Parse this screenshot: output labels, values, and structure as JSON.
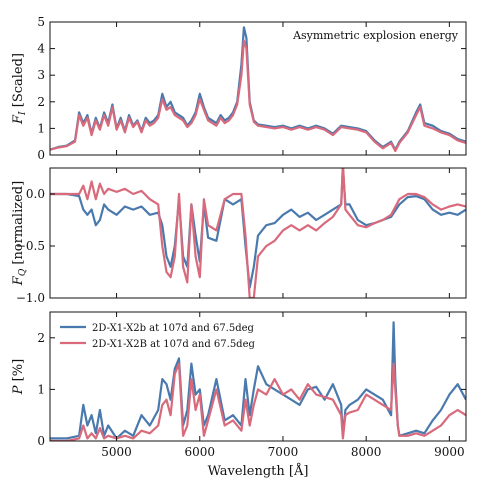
{
  "chart_data": [
    {
      "type": "line",
      "ylabel": "F_I [Scaled]",
      "xlim": [
        4200,
        9200
      ],
      "ylim": [
        0,
        5
      ],
      "yticks": [
        "0",
        "1",
        "2",
        "3",
        "4",
        "5"
      ],
      "annotation": "Asymmetric explosion energy",
      "series": [
        {
          "color": "#4a7aad",
          "x": [
            4200,
            4300,
            4400,
            4500,
            4550,
            4600,
            4650,
            4700,
            4750,
            4800,
            4850,
            4900,
            4950,
            5000,
            5050,
            5100,
            5150,
            5200,
            5250,
            5300,
            5350,
            5400,
            5450,
            5500,
            5550,
            5600,
            5650,
            5700,
            5750,
            5800,
            5850,
            5900,
            5950,
            6000,
            6050,
            6100,
            6150,
            6200,
            6250,
            6300,
            6350,
            6400,
            6450,
            6500,
            6530,
            6560,
            6600,
            6650,
            6700,
            6800,
            6900,
            7000,
            7100,
            7200,
            7300,
            7400,
            7500,
            7600,
            7700,
            7800,
            7900,
            8000,
            8100,
            8200,
            8300,
            8350,
            8400,
            8500,
            8600,
            8650,
            8700,
            8800,
            8900,
            9000,
            9100,
            9200
          ],
          "y": [
            0.2,
            0.3,
            0.35,
            0.55,
            1.6,
            1.2,
            1.5,
            0.8,
            1.4,
            1.0,
            1.6,
            1.2,
            1.9,
            1.0,
            1.4,
            0.9,
            1.5,
            1.1,
            1.3,
            0.9,
            1.4,
            1.2,
            1.3,
            1.5,
            2.3,
            1.8,
            2.0,
            1.6,
            1.5,
            1.4,
            1.1,
            1.3,
            1.6,
            2.3,
            1.8,
            1.4,
            1.3,
            1.2,
            1.5,
            1.3,
            1.4,
            1.6,
            2.0,
            3.4,
            4.8,
            4.4,
            2.0,
            1.3,
            1.15,
            1.1,
            1.05,
            1.1,
            1.0,
            1.1,
            1.0,
            1.1,
            1.0,
            0.8,
            1.1,
            1.05,
            1.0,
            0.9,
            0.55,
            0.3,
            0.5,
            0.2,
            0.5,
            0.9,
            1.6,
            1.9,
            1.2,
            1.1,
            0.9,
            0.8,
            0.6,
            0.5
          ]
        },
        {
          "color": "#d86a7c",
          "x": [
            4200,
            4300,
            4400,
            4500,
            4550,
            4600,
            4650,
            4700,
            4750,
            4800,
            4850,
            4900,
            4950,
            5000,
            5050,
            5100,
            5150,
            5200,
            5250,
            5300,
            5350,
            5400,
            5450,
            5500,
            5550,
            5600,
            5650,
            5700,
            5750,
            5800,
            5850,
            5900,
            5950,
            6000,
            6050,
            6100,
            6150,
            6200,
            6250,
            6300,
            6350,
            6400,
            6450,
            6500,
            6530,
            6560,
            6600,
            6650,
            6700,
            6800,
            6900,
            7000,
            7100,
            7200,
            7300,
            7400,
            7500,
            7600,
            7700,
            7800,
            7900,
            8000,
            8100,
            8200,
            8300,
            8350,
            8400,
            8500,
            8600,
            8650,
            8700,
            8800,
            8900,
            9000,
            9100,
            9200
          ],
          "y": [
            0.2,
            0.28,
            0.33,
            0.5,
            1.5,
            1.1,
            1.4,
            0.75,
            1.3,
            0.95,
            1.5,
            1.1,
            1.8,
            0.95,
            1.3,
            0.85,
            1.4,
            1.05,
            1.25,
            0.85,
            1.3,
            1.1,
            1.2,
            1.4,
            2.1,
            1.7,
            1.8,
            1.5,
            1.4,
            1.3,
            1.05,
            1.2,
            1.5,
            2.1,
            1.7,
            1.3,
            1.2,
            1.1,
            1.4,
            1.2,
            1.3,
            1.5,
            1.9,
            3.0,
            4.3,
            4.0,
            1.9,
            1.25,
            1.1,
            1.05,
            1.0,
            1.05,
            0.95,
            1.05,
            0.95,
            1.05,
            0.95,
            0.75,
            1.05,
            1.0,
            0.95,
            0.85,
            0.5,
            0.25,
            0.45,
            0.15,
            0.45,
            0.85,
            1.5,
            1.8,
            1.1,
            1.0,
            0.85,
            0.75,
            0.55,
            0.45
          ]
        }
      ]
    },
    {
      "type": "line",
      "ylabel": "F_Q [normalized]",
      "xlim": [
        4200,
        9200
      ],
      "ylim": [
        -1.0,
        0.25
      ],
      "yticks": [
        "0.0",
        "−0.5",
        "−1.0"
      ],
      "series": [
        {
          "color": "#4a7aad",
          "x": [
            4200,
            4400,
            4550,
            4600,
            4650,
            4700,
            4750,
            4800,
            4850,
            4900,
            5000,
            5100,
            5200,
            5300,
            5400,
            5500,
            5550,
            5600,
            5650,
            5700,
            5750,
            5800,
            5850,
            5900,
            5950,
            6000,
            6050,
            6100,
            6200,
            6300,
            6400,
            6500,
            6550,
            6600,
            6650,
            6700,
            6800,
            6900,
            7000,
            7100,
            7200,
            7300,
            7400,
            7500,
            7600,
            7700,
            7720,
            7750,
            7800,
            7900,
            8000,
            8100,
            8200,
            8300,
            8400,
            8500,
            8600,
            8700,
            8800,
            8900,
            9000,
            9100,
            9200
          ],
          "y": [
            0.0,
            0.0,
            -0.02,
            -0.15,
            -0.2,
            -0.15,
            -0.3,
            -0.25,
            -0.1,
            -0.15,
            -0.2,
            -0.12,
            -0.15,
            -0.12,
            -0.2,
            -0.18,
            -0.3,
            -0.6,
            -0.7,
            -0.5,
            -0.05,
            -0.6,
            -0.7,
            -0.1,
            -0.4,
            -0.65,
            -0.1,
            -0.42,
            -0.45,
            -0.05,
            -0.1,
            -0.05,
            -0.5,
            -0.9,
            -0.7,
            -0.4,
            -0.3,
            -0.28,
            -0.2,
            -0.15,
            -0.22,
            -0.18,
            -0.25,
            -0.2,
            -0.15,
            -0.1,
            0.25,
            -0.1,
            -0.1,
            -0.25,
            -0.3,
            -0.28,
            -0.25,
            -0.22,
            -0.1,
            -0.03,
            -0.02,
            -0.05,
            -0.15,
            -0.2,
            -0.18,
            -0.2,
            -0.15
          ]
        },
        {
          "color": "#d86a7c",
          "x": [
            4200,
            4400,
            4550,
            4600,
            4650,
            4700,
            4750,
            4800,
            4850,
            4900,
            5000,
            5100,
            5200,
            5300,
            5400,
            5500,
            5550,
            5600,
            5650,
            5700,
            5750,
            5800,
            5850,
            5900,
            5950,
            6000,
            6050,
            6100,
            6200,
            6300,
            6400,
            6500,
            6550,
            6600,
            6650,
            6700,
            6800,
            6900,
            7000,
            7100,
            7200,
            7300,
            7400,
            7500,
            7600,
            7700,
            7720,
            7750,
            7800,
            7900,
            8000,
            8100,
            8200,
            8300,
            8400,
            8500,
            8600,
            8700,
            8800,
            8900,
            9000,
            9100,
            9200
          ],
          "y": [
            0.0,
            0.0,
            0.0,
            0.08,
            -0.05,
            0.12,
            -0.05,
            0.1,
            0.0,
            0.05,
            0.02,
            0.05,
            0.0,
            0.03,
            -0.05,
            -0.1,
            -0.5,
            -0.75,
            -0.8,
            -0.6,
            0.0,
            -0.7,
            -0.85,
            -0.1,
            -0.6,
            -0.8,
            -0.05,
            -0.3,
            -0.35,
            -0.05,
            0.0,
            0.0,
            -0.4,
            -1.0,
            -1.0,
            -0.6,
            -0.5,
            -0.45,
            -0.35,
            -0.3,
            -0.35,
            -0.3,
            -0.35,
            -0.28,
            -0.22,
            -0.1,
            0.3,
            -0.15,
            -0.2,
            -0.3,
            -0.32,
            -0.28,
            -0.25,
            -0.2,
            -0.05,
            0.0,
            0.0,
            -0.03,
            -0.1,
            -0.15,
            -0.12,
            -0.1,
            -0.12
          ]
        }
      ]
    },
    {
      "type": "line",
      "ylabel": "P [%]",
      "xlabel": "Wavelength [Å]",
      "xlim": [
        4200,
        9200
      ],
      "ylim": [
        0,
        2.5
      ],
      "yticks": [
        "0",
        "1",
        "2"
      ],
      "xticks": [
        5000,
        6000,
        7000,
        8000,
        9000
      ],
      "xtick_labels": [
        "5000",
        "6000",
        "7000",
        "8000",
        "9000"
      ],
      "legend_position": "top-left",
      "series": [
        {
          "name": "2D-X1-X2b at 107d and 67.5deg",
          "color": "#4a7aad",
          "x": [
            4200,
            4400,
            4550,
            4600,
            4650,
            4700,
            4750,
            4800,
            4850,
            4900,
            5000,
            5100,
            5200,
            5300,
            5400,
            5500,
            5550,
            5600,
            5650,
            5700,
            5750,
            5800,
            5850,
            5900,
            5950,
            6000,
            6050,
            6100,
            6200,
            6300,
            6400,
            6500,
            6550,
            6600,
            6650,
            6700,
            6800,
            6900,
            7000,
            7100,
            7200,
            7300,
            7400,
            7500,
            7600,
            7700,
            7720,
            7750,
            7800,
            7900,
            8000,
            8100,
            8200,
            8300,
            8330,
            8350,
            8380,
            8400,
            8500,
            8600,
            8700,
            8800,
            8900,
            9000,
            9100,
            9200
          ],
          "y": [
            0.05,
            0.05,
            0.1,
            0.7,
            0.3,
            0.5,
            0.15,
            0.6,
            0.1,
            0.3,
            0.05,
            0.2,
            0.1,
            0.5,
            0.3,
            0.6,
            1.2,
            1.1,
            0.8,
            1.4,
            1.6,
            0.3,
            0.6,
            1.5,
            0.9,
            1.0,
            0.3,
            0.5,
            1.2,
            0.4,
            0.5,
            0.3,
            1.2,
            0.5,
            1.0,
            1.45,
            1.1,
            1.0,
            0.9,
            0.8,
            0.7,
            1.0,
            1.05,
            0.8,
            1.1,
            0.7,
            0.1,
            0.6,
            0.7,
            0.8,
            1.0,
            0.9,
            0.8,
            0.5,
            2.3,
            1.2,
            0.3,
            0.1,
            0.15,
            0.2,
            0.15,
            0.4,
            0.6,
            0.9,
            1.1,
            0.8
          ]
        },
        {
          "name": "2D-X1-X2B at 107d and 67.5deg",
          "color": "#d86a7c",
          "x": [
            4200,
            4400,
            4550,
            4600,
            4650,
            4700,
            4750,
            4800,
            4850,
            4900,
            5000,
            5100,
            5200,
            5300,
            5400,
            5500,
            5550,
            5600,
            5650,
            5700,
            5750,
            5800,
            5850,
            5900,
            5950,
            6000,
            6050,
            6100,
            6200,
            6300,
            6400,
            6500,
            6550,
            6600,
            6650,
            6700,
            6800,
            6900,
            7000,
            7100,
            7200,
            7300,
            7400,
            7500,
            7600,
            7700,
            7720,
            7750,
            7800,
            7900,
            8000,
            8100,
            8200,
            8300,
            8330,
            8350,
            8380,
            8400,
            8500,
            8600,
            8700,
            8800,
            8900,
            9000,
            9100,
            9200
          ],
          "y": [
            0.0,
            0.0,
            0.05,
            0.3,
            0.05,
            0.15,
            0.05,
            0.25,
            0.05,
            0.1,
            0.05,
            0.1,
            0.05,
            0.2,
            0.15,
            0.3,
            0.7,
            0.8,
            0.5,
            1.3,
            1.5,
            0.1,
            0.3,
            1.2,
            0.6,
            0.9,
            0.1,
            0.4,
            1.0,
            0.3,
            0.4,
            0.2,
            0.8,
            0.3,
            0.7,
            1.0,
            0.9,
            1.2,
            0.9,
            1.0,
            0.8,
            1.1,
            0.9,
            0.85,
            0.8,
            0.5,
            0.05,
            0.5,
            0.55,
            0.6,
            0.9,
            0.8,
            0.7,
            0.6,
            1.5,
            1.0,
            0.3,
            0.1,
            0.1,
            0.15,
            0.1,
            0.2,
            0.3,
            0.5,
            0.6,
            0.5
          ]
        }
      ]
    }
  ]
}
